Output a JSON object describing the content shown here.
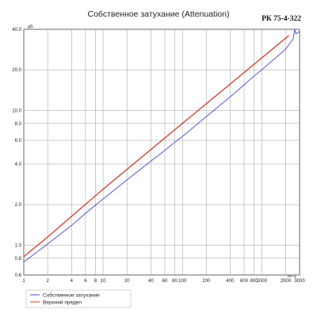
{
  "chart_data": {
    "type": "line",
    "title": "Собственное затухание (Attenuation)",
    "subtitle": "РК 75-4-322",
    "xlabel": "МГц",
    "ylabel": "дБ",
    "x_scale": "log",
    "y_scale": "log",
    "xlim": [
      1,
      3000
    ],
    "ylim": [
      0.6,
      40
    ],
    "x_ticks": [
      "1",
      "2",
      "4",
      "6",
      "8",
      "10",
      "20",
      "40",
      "60",
      "80",
      "100",
      "200",
      "400",
      "600",
      "800",
      "1000",
      "2000",
      "3000"
    ],
    "x_tick_values": [
      1,
      2,
      4,
      6,
      8,
      10,
      20,
      40,
      60,
      80,
      100,
      200,
      400,
      600,
      800,
      1000,
      2000,
      3000
    ],
    "y_ticks": [
      "40.0",
      "20.0",
      "10.0",
      "8.0",
      "6.0",
      "4.0",
      "2.0",
      "1.0",
      "0.8",
      "0.6"
    ],
    "y_tick_values": [
      40,
      20,
      10,
      8,
      6,
      4,
      2,
      1,
      0.8,
      0.6
    ],
    "grid": true,
    "legend_position": "bottom-left",
    "series": [
      {
        "name": "Собственное затухание",
        "color": "#4a4ad0",
        "x": [
          1,
          2,
          4,
          6,
          8,
          10,
          20,
          40,
          60,
          80,
          100,
          200,
          400,
          600,
          800,
          1000,
          2000,
          2500,
          2600,
          2700,
          2800,
          3000
        ],
        "y": [
          0.75,
          1.02,
          1.4,
          1.72,
          1.98,
          2.2,
          3.05,
          4.2,
          5.05,
          5.8,
          6.4,
          9.0,
          12.6,
          15.5,
          18.0,
          20.0,
          28.5,
          34.0,
          40.0,
          37.0,
          37.5,
          38.5
        ]
      },
      {
        "name": "Верхний предел",
        "color": "#d03a2a",
        "x": [
          1,
          2,
          10,
          100,
          1000,
          2200
        ],
        "y": [
          0.82,
          1.15,
          2.6,
          8.0,
          24.5,
          36.0
        ]
      }
    ]
  }
}
